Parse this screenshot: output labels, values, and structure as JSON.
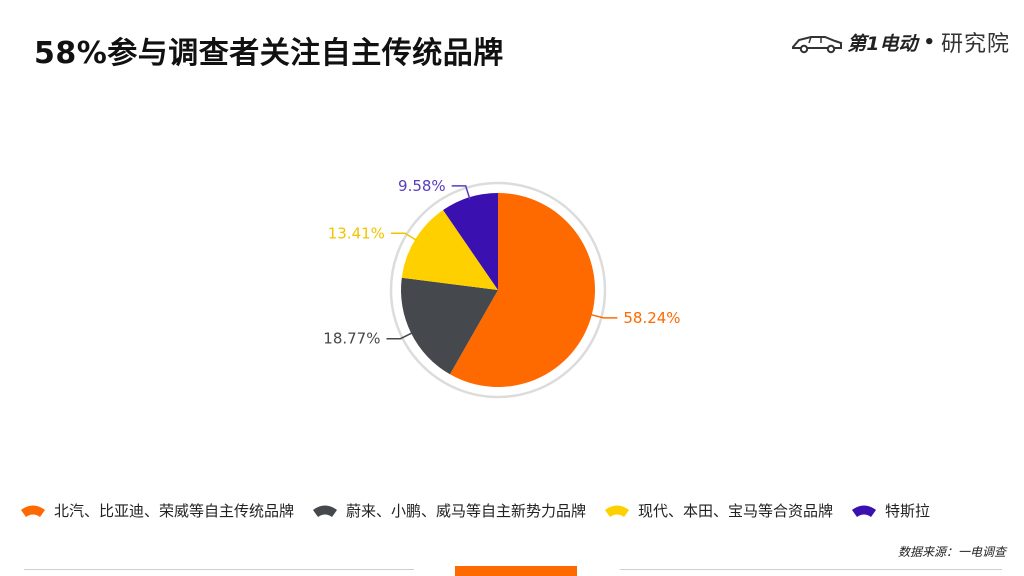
{
  "title": "58%参与调查者关注自主传统品牌",
  "brand": {
    "name": "第1电动",
    "separator": "•",
    "sub": "研究院"
  },
  "source": "数据来源：一电调查",
  "chart_data": {
    "type": "pie",
    "title": "",
    "categories": [
      "北汽、比亚迪、荣威等自主传统品牌",
      "蔚来、小鹏、威马等自主新势力品牌",
      "现代、本田、宝马等合资品牌",
      "特斯拉"
    ],
    "values": [
      58.24,
      18.77,
      13.41,
      9.58
    ],
    "data_labels": [
      "58.24%",
      "18.77%",
      "13.41%",
      "9.58%"
    ],
    "colors": [
      "#ff6a00",
      "#45494d",
      "#ffd000",
      "#3a10b0"
    ],
    "label_colors": [
      "#ff6a00",
      "#45494d",
      "#f2c400",
      "#5a3cc0"
    ],
    "start": "12 o'clock",
    "direction": "clockwise",
    "legend_position": "bottom"
  },
  "footer_accent_color": "#ff6a00"
}
